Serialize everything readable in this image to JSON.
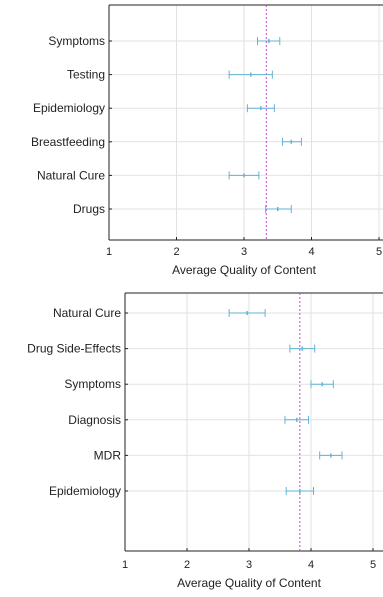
{
  "chart_data": [
    {
      "type": "errorbar",
      "xlabel": "Average Quality of Content",
      "xlim": [
        1,
        5
      ],
      "xticks": [
        1,
        2,
        3,
        4,
        5
      ],
      "grid": true,
      "categories": [
        "Symptoms",
        "Testing",
        "Epidemiology",
        "Breastfeeding",
        "Natural Cure",
        "Drugs"
      ],
      "means": [
        3.37,
        3.1,
        3.25,
        3.7,
        3.0,
        3.5
      ],
      "lower": [
        3.2,
        2.78,
        3.05,
        3.57,
        2.78,
        3.32
      ],
      "upper": [
        3.53,
        3.42,
        3.45,
        3.85,
        3.22,
        3.7
      ],
      "reference_line": 3.33,
      "colors": {
        "errorbar": "#62b3d6",
        "reference": "#cc44cc",
        "grid": "#e2e2e2"
      }
    },
    {
      "type": "errorbar",
      "xlabel": "Average Quality of Content",
      "xlim": [
        1,
        5
      ],
      "xticks": [
        1,
        2,
        3,
        4,
        5
      ],
      "grid": true,
      "categories": [
        "Natural Cure",
        "Drug Side-Effects",
        "Symptoms",
        "Diagnosis",
        "MDR",
        "Epidemiology"
      ],
      "means": [
        2.97,
        3.86,
        4.18,
        3.77,
        4.32,
        3.82
      ],
      "lower": [
        2.68,
        3.66,
        4.0,
        3.58,
        4.14,
        3.6
      ],
      "upper": [
        3.26,
        4.06,
        4.36,
        3.96,
        4.5,
        4.04
      ],
      "reference_line": 3.82,
      "colors": {
        "errorbar": "#62b3d6",
        "reference": "#cc44cc",
        "grid": "#e2e2e2"
      }
    }
  ]
}
